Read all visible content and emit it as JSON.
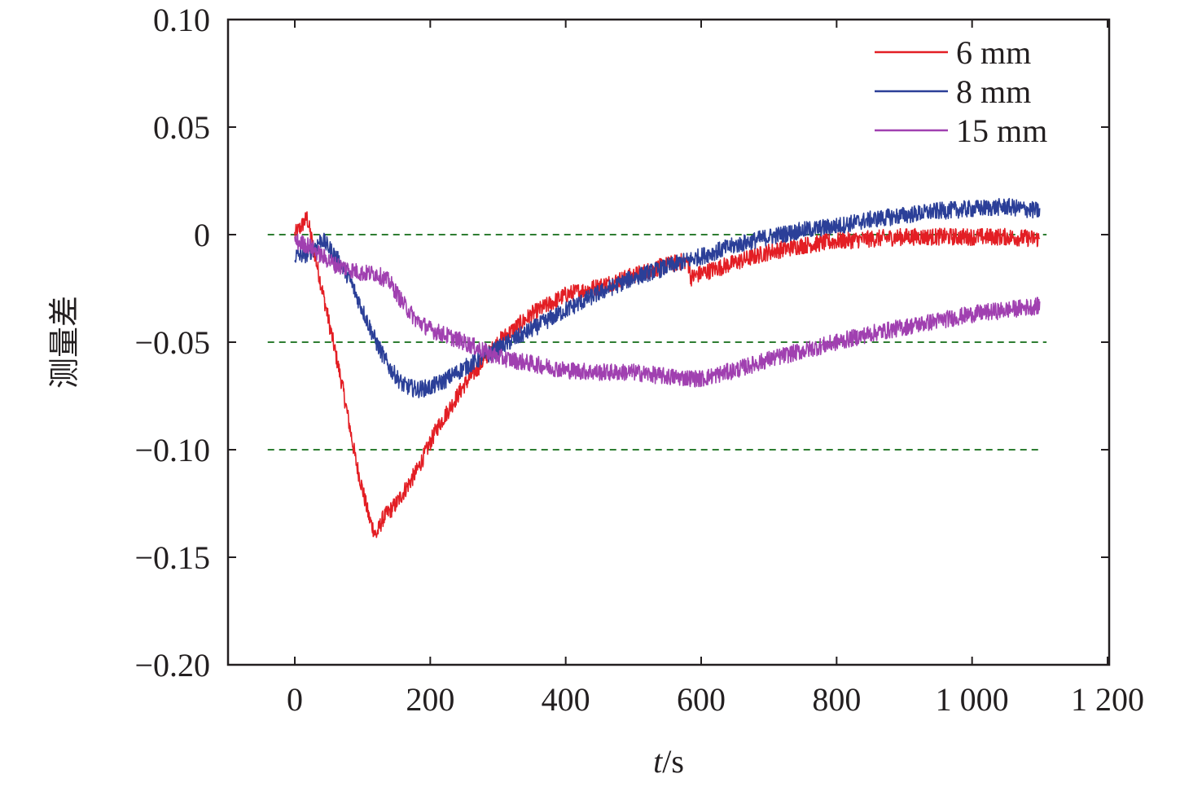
{
  "chart_data": {
    "type": "line",
    "title": "",
    "xlabel": "t/s",
    "xlabel_italic_part": "t",
    "xlabel_unit_part": "/s",
    "ylabel": "测量差",
    "xlim": [
      -100,
      1200
    ],
    "ylim": [
      -0.2,
      0.1
    ],
    "x_ticks": [
      0,
      200,
      400,
      600,
      800,
      1000,
      1200
    ],
    "x_tick_labels": [
      "0",
      "200",
      "400",
      "600",
      "800",
      "1 000",
      "1 200"
    ],
    "y_ticks": [
      0.1,
      0.05,
      0,
      -0.05,
      -0.1,
      -0.15,
      -0.2
    ],
    "y_tick_labels": [
      "0.10",
      "0.05",
      "0",
      "−0.05",
      "−0.10",
      "−0.15",
      "−0.20"
    ],
    "reference_lines": [
      {
        "y": 0,
        "x_range": [
          -40,
          1110
        ],
        "style": "dashed",
        "color": "#2e7d32"
      },
      {
        "y": -0.05,
        "x_range": [
          -40,
          1110
        ],
        "style": "dashed",
        "color": "#2e7d32"
      },
      {
        "y": -0.1,
        "x_range": [
          -40,
          1100
        ],
        "style": "dashed",
        "color": "#2e7d32"
      }
    ],
    "grid": false,
    "legend_position": "top-right",
    "series": [
      {
        "name": "6 mm",
        "color": "#e31e24",
        "noise": 0.004,
        "x": [
          0,
          10,
          18,
          30,
          50,
          70,
          90,
          110,
          120,
          130,
          150,
          180,
          210,
          250,
          300,
          350,
          400,
          450,
          500,
          550,
          580,
          585,
          600,
          650,
          700,
          750,
          800,
          850,
          900,
          950,
          1000,
          1050,
          1100
        ],
        "y": [
          0.0,
          0.004,
          0.008,
          -0.01,
          -0.04,
          -0.07,
          -0.105,
          -0.132,
          -0.14,
          -0.132,
          -0.125,
          -0.11,
          -0.09,
          -0.07,
          -0.05,
          -0.037,
          -0.028,
          -0.024,
          -0.019,
          -0.014,
          -0.012,
          -0.02,
          -0.018,
          -0.013,
          -0.008,
          -0.005,
          -0.003,
          -0.002,
          -0.001,
          -0.001,
          -0.001,
          -0.001,
          -0.002
        ]
      },
      {
        "name": "8 mm",
        "color": "#2b3f98",
        "noise": 0.004,
        "x": [
          0,
          20,
          40,
          60,
          80,
          100,
          120,
          140,
          160,
          180,
          200,
          220,
          250,
          300,
          350,
          400,
          450,
          500,
          550,
          600,
          650,
          700,
          750,
          800,
          850,
          900,
          950,
          1000,
          1050,
          1100
        ],
        "y": [
          -0.01,
          -0.009,
          -0.002,
          -0.01,
          -0.02,
          -0.035,
          -0.05,
          -0.062,
          -0.07,
          -0.072,
          -0.071,
          -0.068,
          -0.062,
          -0.053,
          -0.044,
          -0.035,
          -0.027,
          -0.02,
          -0.015,
          -0.01,
          -0.005,
          -0.001,
          0.002,
          0.004,
          0.007,
          0.009,
          0.011,
          0.012,
          0.013,
          0.011
        ]
      },
      {
        "name": "15 mm",
        "color": "#a040b0",
        "noise": 0.004,
        "x": [
          0,
          20,
          40,
          60,
          80,
          100,
          120,
          140,
          160,
          180,
          200,
          250,
          300,
          350,
          400,
          450,
          500,
          550,
          600,
          650,
          700,
          750,
          800,
          850,
          900,
          950,
          1000,
          1050,
          1100
        ],
        "y": [
          -0.003,
          -0.005,
          -0.01,
          -0.014,
          -0.016,
          -0.018,
          -0.018,
          -0.022,
          -0.032,
          -0.04,
          -0.044,
          -0.05,
          -0.057,
          -0.06,
          -0.063,
          -0.064,
          -0.064,
          -0.066,
          -0.067,
          -0.063,
          -0.058,
          -0.054,
          -0.05,
          -0.046,
          -0.043,
          -0.04,
          -0.037,
          -0.035,
          -0.033
        ]
      }
    ]
  }
}
